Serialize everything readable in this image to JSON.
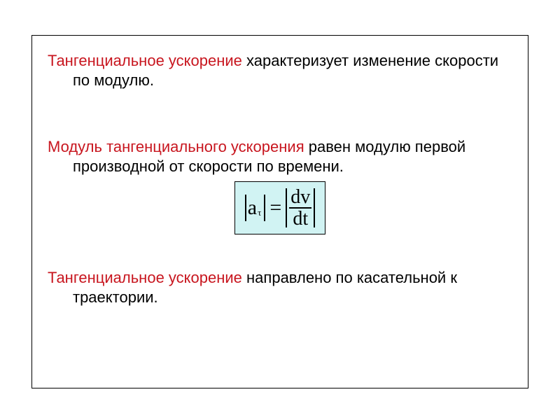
{
  "colors": {
    "emphasis": "#c8161f",
    "text": "#000000",
    "formula_bg": "#d1f3f3",
    "border": "#000000",
    "page_bg": "#ffffff"
  },
  "typography": {
    "body_font": "Arial",
    "body_size_pt": 16,
    "formula_font": "Times New Roman",
    "formula_size_pt": 22
  },
  "para1": {
    "term": "Тангенциальное ускорение",
    "rest": " характеризует изменение скорости по модулю."
  },
  "para2": {
    "term": "Модуль тангенциального ускорения",
    "rest": " равен модулю первой производной от скорости по времени."
  },
  "formula": {
    "lhs_symbol": "a",
    "lhs_subscript": "τ",
    "eq": "=",
    "rhs_num": "dv",
    "rhs_den": "dt"
  },
  "para3": {
    "term": "Тангенциальное ускорение",
    "rest": " направлено по касательной к траектории."
  }
}
